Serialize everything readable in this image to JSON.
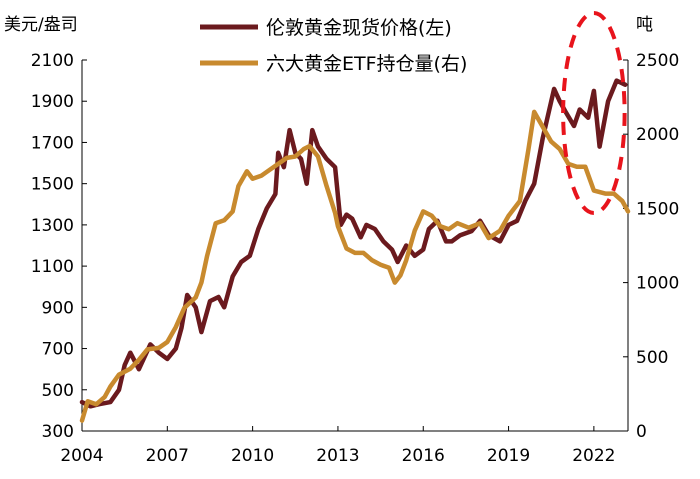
{
  "chart_data": {
    "type": "line",
    "title": "",
    "left_axis": {
      "label": "美元/盎司",
      "ylim": [
        300,
        2100
      ],
      "ticks": [
        300,
        500,
        700,
        900,
        1100,
        1300,
        1500,
        1700,
        1900,
        2100
      ]
    },
    "right_axis": {
      "label": "吨",
      "ylim": [
        0,
        2500
      ],
      "ticks": [
        0,
        500,
        1000,
        1500,
        2000,
        2500
      ]
    },
    "x_axis": {
      "xlim": [
        2004,
        2023.2
      ],
      "ticks": [
        2004,
        2007,
        2010,
        2013,
        2016,
        2019,
        2022
      ],
      "tick_labels": [
        "2004",
        "2007",
        "2010",
        "2013",
        "2016",
        "2019",
        "2022"
      ]
    },
    "legend": {
      "position": "top-center"
    },
    "grid": false,
    "annotation": {
      "type": "dashed-ellipse",
      "color": "#e8141c",
      "x_range": [
        2021.2,
        2022.8
      ]
    },
    "series": [
      {
        "name": "伦敦黄金现货价格(左)",
        "axis": "left",
        "color": "#6b1a1e",
        "x": [
          2004.0,
          2004.3,
          2004.6,
          2005.0,
          2005.3,
          2005.5,
          2005.7,
          2006.0,
          2006.4,
          2006.7,
          2007.0,
          2007.3,
          2007.5,
          2007.7,
          2008.0,
          2008.2,
          2008.5,
          2008.8,
          2009.0,
          2009.3,
          2009.6,
          2009.9,
          2010.2,
          2010.5,
          2010.8,
          2010.9,
          2011.1,
          2011.3,
          2011.5,
          2011.7,
          2011.9,
          2012.1,
          2012.3,
          2012.6,
          2012.9,
          2013.1,
          2013.3,
          2013.5,
          2013.8,
          2014.0,
          2014.3,
          2014.6,
          2014.9,
          2015.1,
          2015.4,
          2015.7,
          2016.0,
          2016.2,
          2016.5,
          2016.8,
          2017.0,
          2017.3,
          2017.7,
          2018.0,
          2018.3,
          2018.7,
          2019.0,
          2019.3,
          2019.6,
          2019.9,
          2020.2,
          2020.6,
          2020.8,
          2021.0,
          2021.3,
          2021.5,
          2021.8,
          2022.0,
          2022.2,
          2022.5,
          2022.8,
          2023.1
        ],
        "values": [
          440,
          420,
          430,
          440,
          500,
          620,
          680,
          600,
          720,
          680,
          650,
          700,
          800,
          960,
          900,
          780,
          930,
          950,
          900,
          1050,
          1120,
          1150,
          1280,
          1380,
          1450,
          1650,
          1580,
          1760,
          1650,
          1620,
          1500,
          1760,
          1680,
          1620,
          1580,
          1300,
          1350,
          1330,
          1240,
          1300,
          1280,
          1220,
          1180,
          1120,
          1200,
          1150,
          1180,
          1280,
          1320,
          1220,
          1220,
          1250,
          1270,
          1320,
          1250,
          1220,
          1300,
          1320,
          1420,
          1500,
          1720,
          1960,
          1900,
          1850,
          1780,
          1860,
          1820,
          1950,
          1680,
          1900,
          2000,
          1980
        ]
      },
      {
        "name": "六大黄金ETF持仓量(右)",
        "axis": "right",
        "color": "#c88a2e",
        "x": [
          2004.0,
          2004.2,
          2004.5,
          2004.8,
          2005.0,
          2005.3,
          2005.7,
          2006.0,
          2006.3,
          2006.7,
          2007.0,
          2007.3,
          2007.6,
          2008.0,
          2008.2,
          2008.4,
          2008.7,
          2009.0,
          2009.3,
          2009.5,
          2009.8,
          2010.0,
          2010.3,
          2010.6,
          2010.9,
          2011.2,
          2011.5,
          2011.8,
          2012.0,
          2012.3,
          2012.6,
          2012.9,
          2013.0,
          2013.3,
          2013.6,
          2013.9,
          2014.2,
          2014.5,
          2014.8,
          2015.0,
          2015.2,
          2015.4,
          2015.7,
          2016.0,
          2016.3,
          2016.6,
          2016.9,
          2017.2,
          2017.6,
          2018.0,
          2018.3,
          2018.7,
          2019.0,
          2019.4,
          2019.7,
          2019.9,
          2020.2,
          2020.5,
          2020.8,
          2021.1,
          2021.4,
          2021.7,
          2022.0,
          2022.4,
          2022.7,
          2023.0,
          2023.2
        ],
        "values": [
          70,
          200,
          180,
          230,
          300,
          380,
          420,
          480,
          550,
          560,
          600,
          700,
          830,
          900,
          1000,
          1180,
          1400,
          1420,
          1480,
          1650,
          1750,
          1700,
          1720,
          1760,
          1800,
          1840,
          1850,
          1900,
          1920,
          1850,
          1650,
          1470,
          1380,
          1230,
          1200,
          1200,
          1150,
          1120,
          1100,
          1000,
          1050,
          1150,
          1350,
          1480,
          1450,
          1380,
          1360,
          1400,
          1370,
          1400,
          1300,
          1350,
          1450,
          1550,
          1900,
          2150,
          2050,
          1950,
          1900,
          1800,
          1780,
          1780,
          1620,
          1600,
          1600,
          1550,
          1480
        ]
      }
    ]
  }
}
